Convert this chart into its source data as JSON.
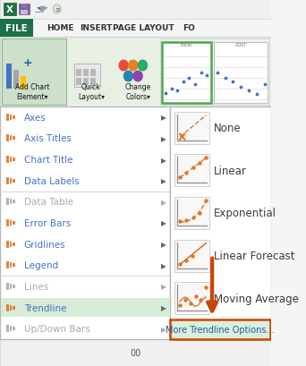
{
  "figsize": [
    3.42,
    4.1
  ],
  "dpi": 100,
  "bg_color": "#f5f5f5",
  "file_btn_color": "#1e7145",
  "file_btn_text": "FILE",
  "tab_labels": [
    "HOME",
    "INSERT",
    "PAGE LAYOUT",
    "FO"
  ],
  "menu_items": [
    "Axes",
    "Axis Titles",
    "Chart Title",
    "Data Labels",
    "Data Table",
    "Error Bars",
    "Gridlines",
    "Legend",
    "Lines",
    "Trendline",
    "Up/Down Bars"
  ],
  "menu_items_disabled": [
    4,
    8,
    10
  ],
  "trendline_options": [
    "None",
    "Linear",
    "Exponential",
    "Linear Forecast",
    "Moving Average"
  ],
  "more_button": "More Trendline Options...",
  "accent_color": "#e07828",
  "accent_text": "#4472c4",
  "green_highlight": "#d6ecd6",
  "menu_border": "#c0c0c0",
  "text_color": "#3b3b3b",
  "link_color": "#4472c4",
  "disabled_color": "#aaaaaa",
  "arrow_color": "#cc4400",
  "ribbon_bg": "#e8f0e4",
  "white": "#ffffff"
}
